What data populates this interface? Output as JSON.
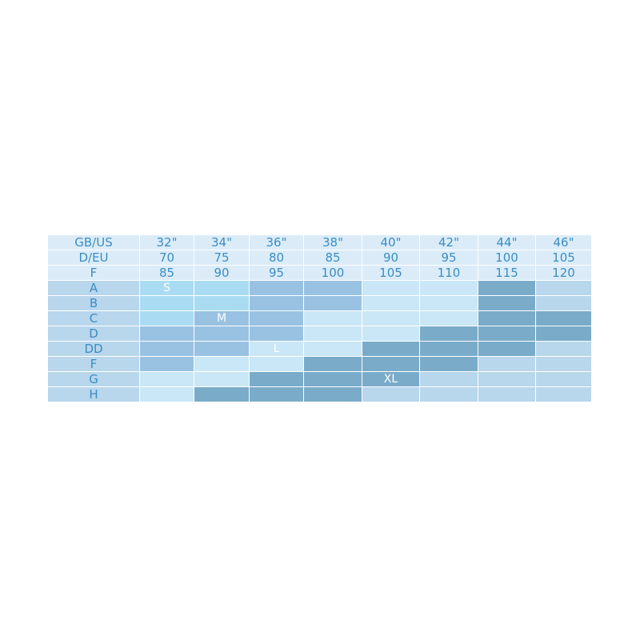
{
  "chart_data": {
    "type": "table",
    "header_rows": [
      {
        "label": "GB/US",
        "values": [
          "32\"",
          "34\"",
          "36\"",
          "38\"",
          "40\"",
          "42\"",
          "44\"",
          "46\""
        ]
      },
      {
        "label": "D/EU",
        "values": [
          "70",
          "75",
          "80",
          "85",
          "90",
          "95",
          "100",
          "105"
        ]
      },
      {
        "label": "F",
        "values": [
          "85",
          "90",
          "95",
          "100",
          "105",
          "110",
          "115",
          "120"
        ]
      }
    ],
    "cup_rows": [
      {
        "label": "A",
        "cells": [
          {
            "text": "S",
            "color": "#a9dcf3"
          },
          {
            "text": "",
            "color": "#a9dcf3"
          },
          {
            "text": "",
            "color": "#99c2e2"
          },
          {
            "text": "",
            "color": "#99c2e2"
          },
          {
            "text": "",
            "color": "#c9e7f6"
          },
          {
            "text": "",
            "color": "#c9e7f6"
          },
          {
            "text": "",
            "color": "#7aabc9"
          },
          {
            "text": "",
            "color": "#b8d6ec"
          }
        ]
      },
      {
        "label": "B",
        "cells": [
          {
            "text": "",
            "color": "#a9dcf3"
          },
          {
            "text": "",
            "color": "#a9dcf3"
          },
          {
            "text": "",
            "color": "#99c2e2"
          },
          {
            "text": "",
            "color": "#99c2e2"
          },
          {
            "text": "",
            "color": "#c9e7f6"
          },
          {
            "text": "",
            "color": "#c9e7f6"
          },
          {
            "text": "",
            "color": "#7aabc9"
          },
          {
            "text": "",
            "color": "#b8d6ec"
          }
        ]
      },
      {
        "label": "C",
        "cells": [
          {
            "text": "",
            "color": "#a9dcf3"
          },
          {
            "text": "M",
            "color": "#99c2e2"
          },
          {
            "text": "",
            "color": "#99c2e2"
          },
          {
            "text": "",
            "color": "#c9e7f6"
          },
          {
            "text": "",
            "color": "#c9e7f6"
          },
          {
            "text": "",
            "color": "#c9e7f6"
          },
          {
            "text": "",
            "color": "#7aabc9"
          },
          {
            "text": "",
            "color": "#7aabc9"
          }
        ]
      },
      {
        "label": "D",
        "cells": [
          {
            "text": "",
            "color": "#99c2e2"
          },
          {
            "text": "",
            "color": "#99c2e2"
          },
          {
            "text": "",
            "color": "#99c2e2"
          },
          {
            "text": "",
            "color": "#c9e7f6"
          },
          {
            "text": "",
            "color": "#c9e7f6"
          },
          {
            "text": "",
            "color": "#7aabc9"
          },
          {
            "text": "",
            "color": "#7aabc9"
          },
          {
            "text": "",
            "color": "#7aabc9"
          }
        ]
      },
      {
        "label": "DD",
        "cells": [
          {
            "text": "",
            "color": "#99c2e2"
          },
          {
            "text": "",
            "color": "#99c2e2"
          },
          {
            "text": "L",
            "color": "#c9e7f6"
          },
          {
            "text": "",
            "color": "#c9e7f6"
          },
          {
            "text": "",
            "color": "#7aabc9"
          },
          {
            "text": "",
            "color": "#7aabc9"
          },
          {
            "text": "",
            "color": "#7aabc9"
          },
          {
            "text": "",
            "color": "#b8d6ec"
          }
        ]
      },
      {
        "label": "F",
        "cells": [
          {
            "text": "",
            "color": "#99c2e2"
          },
          {
            "text": "",
            "color": "#c9e7f6"
          },
          {
            "text": "",
            "color": "#c9e7f6"
          },
          {
            "text": "",
            "color": "#7aabc9"
          },
          {
            "text": "",
            "color": "#7aabc9"
          },
          {
            "text": "",
            "color": "#7aabc9"
          },
          {
            "text": "",
            "color": "#b8d6ec"
          },
          {
            "text": "",
            "color": "#b8d6ec"
          }
        ]
      },
      {
        "label": "G",
        "cells": [
          {
            "text": "",
            "color": "#c9e7f6"
          },
          {
            "text": "",
            "color": "#c9e7f6"
          },
          {
            "text": "",
            "color": "#7aabc9"
          },
          {
            "text": "",
            "color": "#7aabc9"
          },
          {
            "text": "XL",
            "color": "#7aabc9"
          },
          {
            "text": "",
            "color": "#b8d6ec"
          },
          {
            "text": "",
            "color": "#b8d6ec"
          },
          {
            "text": "",
            "color": "#b8d6ec"
          }
        ]
      },
      {
        "label": "H",
        "cells": [
          {
            "text": "",
            "color": "#c9e7f6"
          },
          {
            "text": "",
            "color": "#7aabc9"
          },
          {
            "text": "",
            "color": "#7aabc9"
          },
          {
            "text": "",
            "color": "#7aabc9"
          },
          {
            "text": "",
            "color": "#b8d6ec"
          },
          {
            "text": "",
            "color": "#b8d6ec"
          },
          {
            "text": "",
            "color": "#b8d6ec"
          },
          {
            "text": "",
            "color": "#b8d6ec"
          }
        ]
      }
    ],
    "colors": {
      "header_bg": "#dbecf8",
      "label_bg": "#b8d6ec",
      "text": "#3a8dc4",
      "size_S": "#a9dcf3",
      "size_M": "#99c2e2",
      "size_L": "#c9e7f6",
      "size_XL": "#7aabc9",
      "empty": "#b8d6ec"
    }
  }
}
